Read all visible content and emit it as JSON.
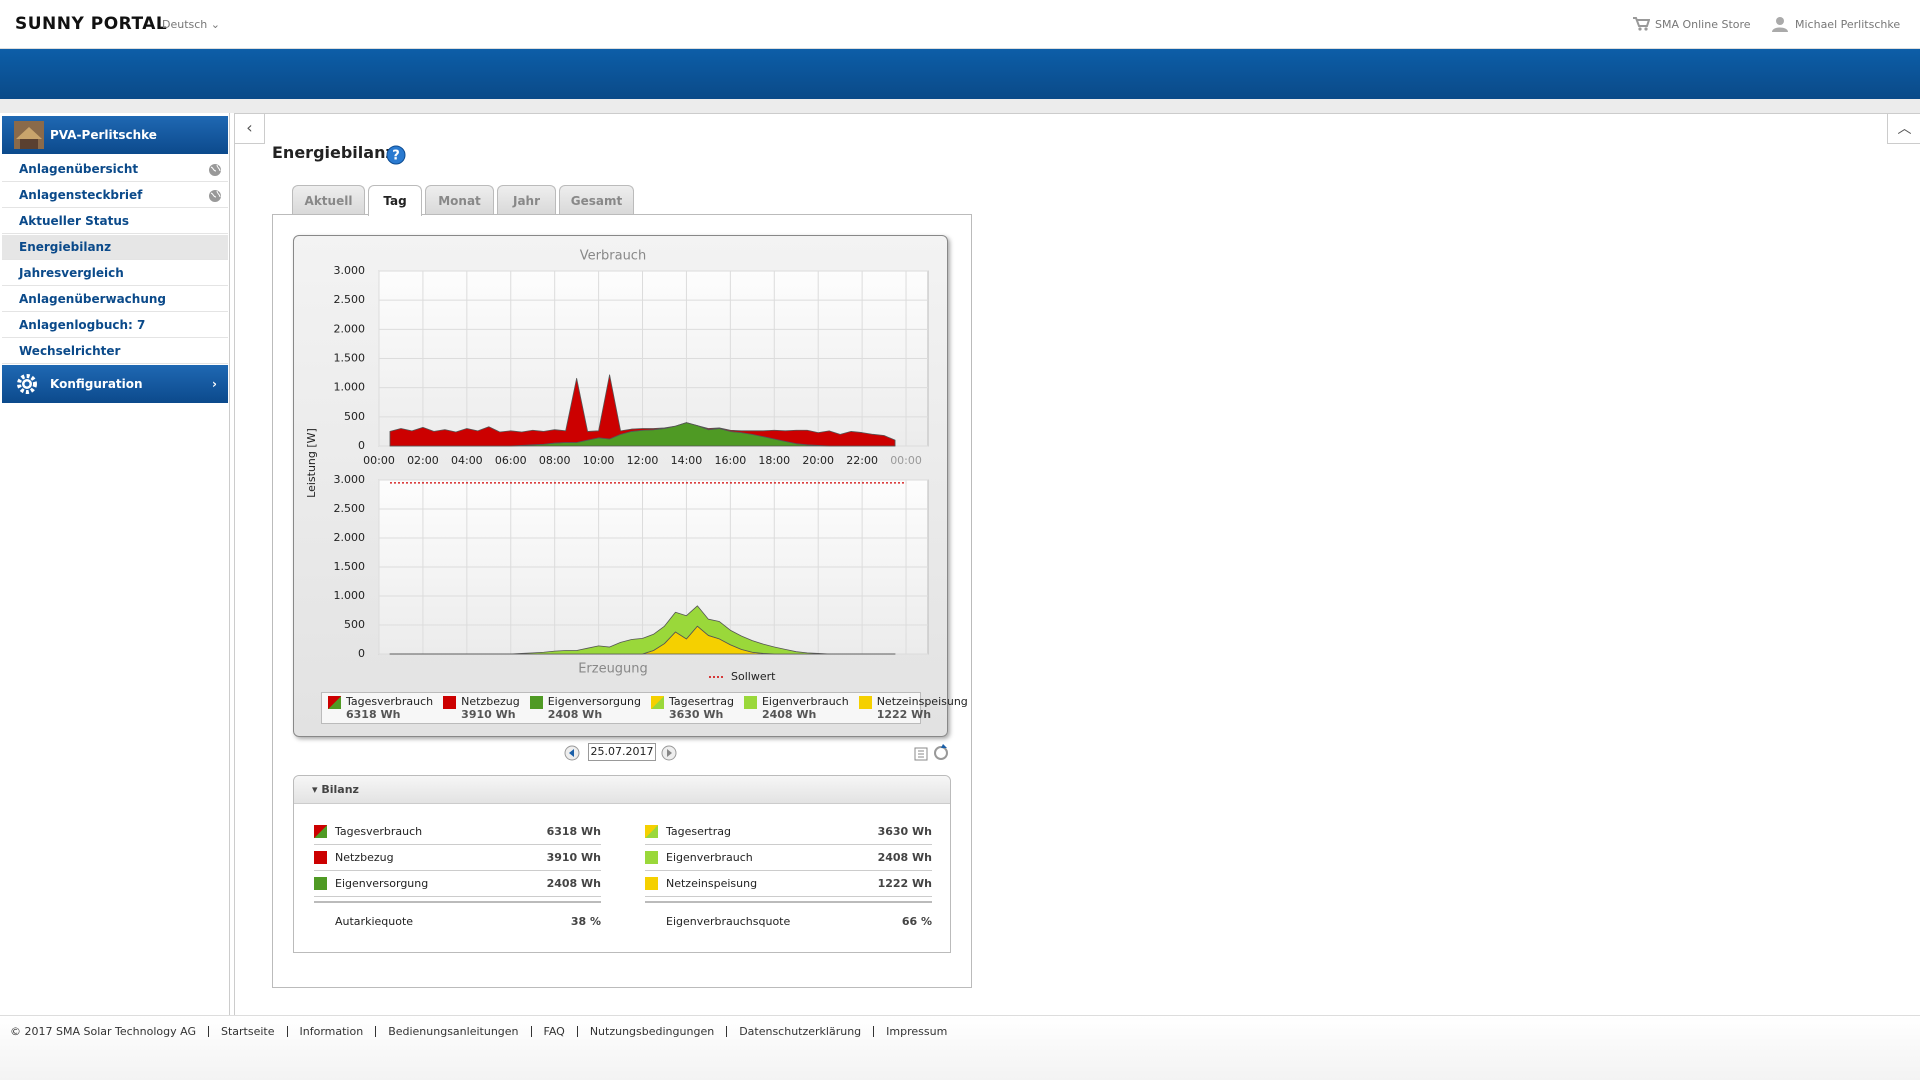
{
  "header": {
    "brand": "SUNNY PORTAL",
    "language": "Deutsch",
    "store": "SMA Online Store",
    "user": "Michael Perlitschke"
  },
  "nav": {
    "plant": "PVA-Perlitschke",
    "items": [
      "Anlagenübersicht",
      "Anlagensteckbrief",
      "Aktueller Status",
      "Energiebilanz",
      "Jahresvergleich",
      "Anlagenüberwachung",
      "Anlagenlogbuch: 7",
      "Wechselrichter"
    ],
    "active": 3,
    "config": "Konfiguration"
  },
  "page": {
    "title": "Energiebilanz",
    "tabs": [
      "Aktuell",
      "Tag",
      "Monat",
      "Jahr",
      "Gesamt"
    ],
    "active_tab": 1,
    "date": "25.07.2017"
  },
  "chart_data": [
    {
      "type": "area",
      "stacked": true,
      "title": "Verbrauch",
      "ylabel": "Leistung [W]",
      "x": [
        0.5,
        1,
        1.5,
        2,
        2.5,
        3,
        3.5,
        4,
        4.5,
        5,
        5.5,
        6,
        6.5,
        7,
        7.5,
        8,
        8.5,
        9,
        9.5,
        10,
        10.5,
        11,
        11.5,
        12,
        12.5,
        13,
        13.5,
        14,
        14.5,
        15,
        15.5,
        16,
        16.5,
        17,
        17.5,
        18,
        18.5,
        19,
        19.5,
        20,
        20.5,
        21,
        21.5,
        22,
        22.5,
        23,
        23.5
      ],
      "series": [
        {
          "name": "Eigenversorgung",
          "color": "#4f9a24",
          "values": [
            0,
            0,
            0,
            0,
            0,
            0,
            0,
            0,
            0,
            0,
            0,
            0,
            10,
            20,
            30,
            50,
            60,
            60,
            100,
            140,
            120,
            200,
            250,
            270,
            280,
            300,
            340,
            400,
            350,
            280,
            300,
            250,
            230,
            200,
            160,
            120,
            80,
            40,
            20,
            10,
            0,
            0,
            0,
            0,
            0,
            0,
            0
          ]
        },
        {
          "name": "Netzbezug",
          "color": "#cc0000",
          "values": [
            250,
            300,
            260,
            320,
            250,
            280,
            240,
            300,
            260,
            330,
            240,
            260,
            230,
            250,
            220,
            230,
            200,
            1100,
            150,
            120,
            1100,
            60,
            40,
            30,
            20,
            10,
            0,
            0,
            0,
            20,
            10,
            20,
            30,
            60,
            100,
            150,
            180,
            230,
            250,
            220,
            260,
            200,
            250,
            230,
            200,
            180,
            100
          ]
        }
      ],
      "xlim": [
        0,
        25
      ],
      "xticks": [
        {
          "value": 0,
          "label": "00:00"
        },
        {
          "value": 2,
          "label": "02:00"
        },
        {
          "value": 4,
          "label": "04:00"
        },
        {
          "value": 6,
          "label": "06:00"
        },
        {
          "value": 8,
          "label": "08:00"
        },
        {
          "value": 10,
          "label": "10:00"
        },
        {
          "value": 12,
          "label": "12:00"
        },
        {
          "value": 14,
          "label": "14:00"
        },
        {
          "value": 16,
          "label": "16:00"
        },
        {
          "value": 18,
          "label": "18:00"
        },
        {
          "value": 20,
          "label": "20:00"
        },
        {
          "value": 22,
          "label": "22:00"
        },
        {
          "value": 24,
          "label": "00:00"
        }
      ],
      "ylim": [
        0,
        3000
      ],
      "yticks": [
        0,
        500,
        {
          "value": 1000,
          "label": "1.000"
        },
        {
          "value": 1500,
          "label": "1.500"
        },
        {
          "value": 2000,
          "label": "2.000"
        },
        {
          "value": 2500,
          "label": "2.500"
        },
        {
          "value": 3000,
          "label": "3.000"
        }
      ],
      "grid": true
    },
    {
      "type": "area",
      "stacked": true,
      "title": "Erzeugung",
      "x": [
        0.5,
        1,
        1.5,
        2,
        2.5,
        3,
        3.5,
        4,
        4.5,
        5,
        5.5,
        6,
        6.5,
        7,
        7.5,
        8,
        8.5,
        9,
        9.5,
        10,
        10.5,
        11,
        11.5,
        12,
        12.5,
        13,
        13.5,
        14,
        14.5,
        15,
        15.5,
        16,
        16.5,
        17,
        17.5,
        18,
        18.5,
        19,
        19.5,
        20,
        20.5,
        21,
        21.5,
        22,
        22.5,
        23,
        23.5
      ],
      "series": [
        {
          "name": "Netzeinspeisung",
          "color": "#f5d000",
          "values": [
            0,
            0,
            0,
            0,
            0,
            0,
            0,
            0,
            0,
            0,
            0,
            0,
            0,
            0,
            0,
            0,
            0,
            0,
            0,
            0,
            0,
            0,
            0,
            0,
            60,
            180,
            380,
            260,
            480,
            320,
            260,
            160,
            80,
            30,
            10,
            0,
            0,
            0,
            0,
            0,
            0,
            0,
            0,
            0,
            0,
            0,
            0
          ]
        },
        {
          "name": "Eigenverbrauch",
          "color": "#9ad83a",
          "values": [
            0,
            0,
            0,
            0,
            0,
            0,
            0,
            0,
            0,
            0,
            0,
            0,
            10,
            20,
            30,
            50,
            60,
            60,
            100,
            140,
            120,
            200,
            250,
            270,
            280,
            300,
            340,
            400,
            350,
            280,
            300,
            250,
            230,
            200,
            160,
            120,
            80,
            40,
            20,
            10,
            0,
            0,
            0,
            0,
            0,
            0,
            0
          ]
        }
      ],
      "xlim": [
        0,
        25
      ],
      "ylim": [
        0,
        3000
      ],
      "yticks": [
        0,
        500,
        {
          "value": 1000,
          "label": "1.000"
        },
        {
          "value": 1500,
          "label": "1.500"
        },
        {
          "value": 2000,
          "label": "2.000"
        },
        {
          "value": 2500,
          "label": "2.500"
        },
        {
          "value": 3000,
          "label": "3.000"
        }
      ],
      "grid": true,
      "reference_line": {
        "name": "Sollwert",
        "value": 2950,
        "color": "#d00000"
      }
    }
  ],
  "legend": [
    {
      "label": "Tagesverbrauch",
      "total": "6318 Wh",
      "colors": [
        "#cc0000",
        "#4f9a24"
      ]
    },
    {
      "label": "Netzbezug",
      "total": "3910 Wh",
      "colors": [
        "#cc0000"
      ]
    },
    {
      "label": "Eigenversorgung",
      "total": "2408 Wh",
      "colors": [
        "#4f9a24"
      ]
    },
    {
      "label": "Tagesertrag",
      "total": "3630 Wh",
      "colors": [
        "#f5d000",
        "#9ad83a"
      ]
    },
    {
      "label": "Eigenverbrauch",
      "total": "2408 Wh",
      "colors": [
        "#9ad83a"
      ]
    },
    {
      "label": "Netzeinspeisung",
      "total": "1222 Wh",
      "colors": [
        "#f5d000"
      ]
    }
  ],
  "bilanz": {
    "title": "Bilanz",
    "left": [
      {
        "label": "Tagesverbrauch",
        "value": "6318 Wh",
        "colors": [
          "#cc0000",
          "#4f9a24"
        ]
      },
      {
        "label": "Netzbezug",
        "value": "3910 Wh",
        "colors": [
          "#cc0000"
        ]
      },
      {
        "label": "Eigenversorgung",
        "value": "2408 Wh",
        "colors": [
          "#4f9a24"
        ]
      }
    ],
    "left_total": {
      "label": "Autarkiequote",
      "value": "38 %"
    },
    "right": [
      {
        "label": "Tagesertrag",
        "value": "3630 Wh",
        "colors": [
          "#f5d000",
          "#9ad83a"
        ]
      },
      {
        "label": "Eigenverbrauch",
        "value": "2408 Wh",
        "colors": [
          "#9ad83a"
        ]
      },
      {
        "label": "Netzeinspeisung",
        "value": "1222 Wh",
        "colors": [
          "#f5d000"
        ]
      }
    ],
    "right_total": {
      "label": "Eigenverbrauchsquote",
      "value": "66 %"
    }
  },
  "footer": {
    "copyright": "© 2017 SMA Solar Technology AG",
    "links": [
      "Startseite",
      "Information",
      "Bedienungsanleitungen",
      "FAQ",
      "Nutzungsbedingungen",
      "Datenschutzerklärung",
      "Impressum"
    ]
  }
}
